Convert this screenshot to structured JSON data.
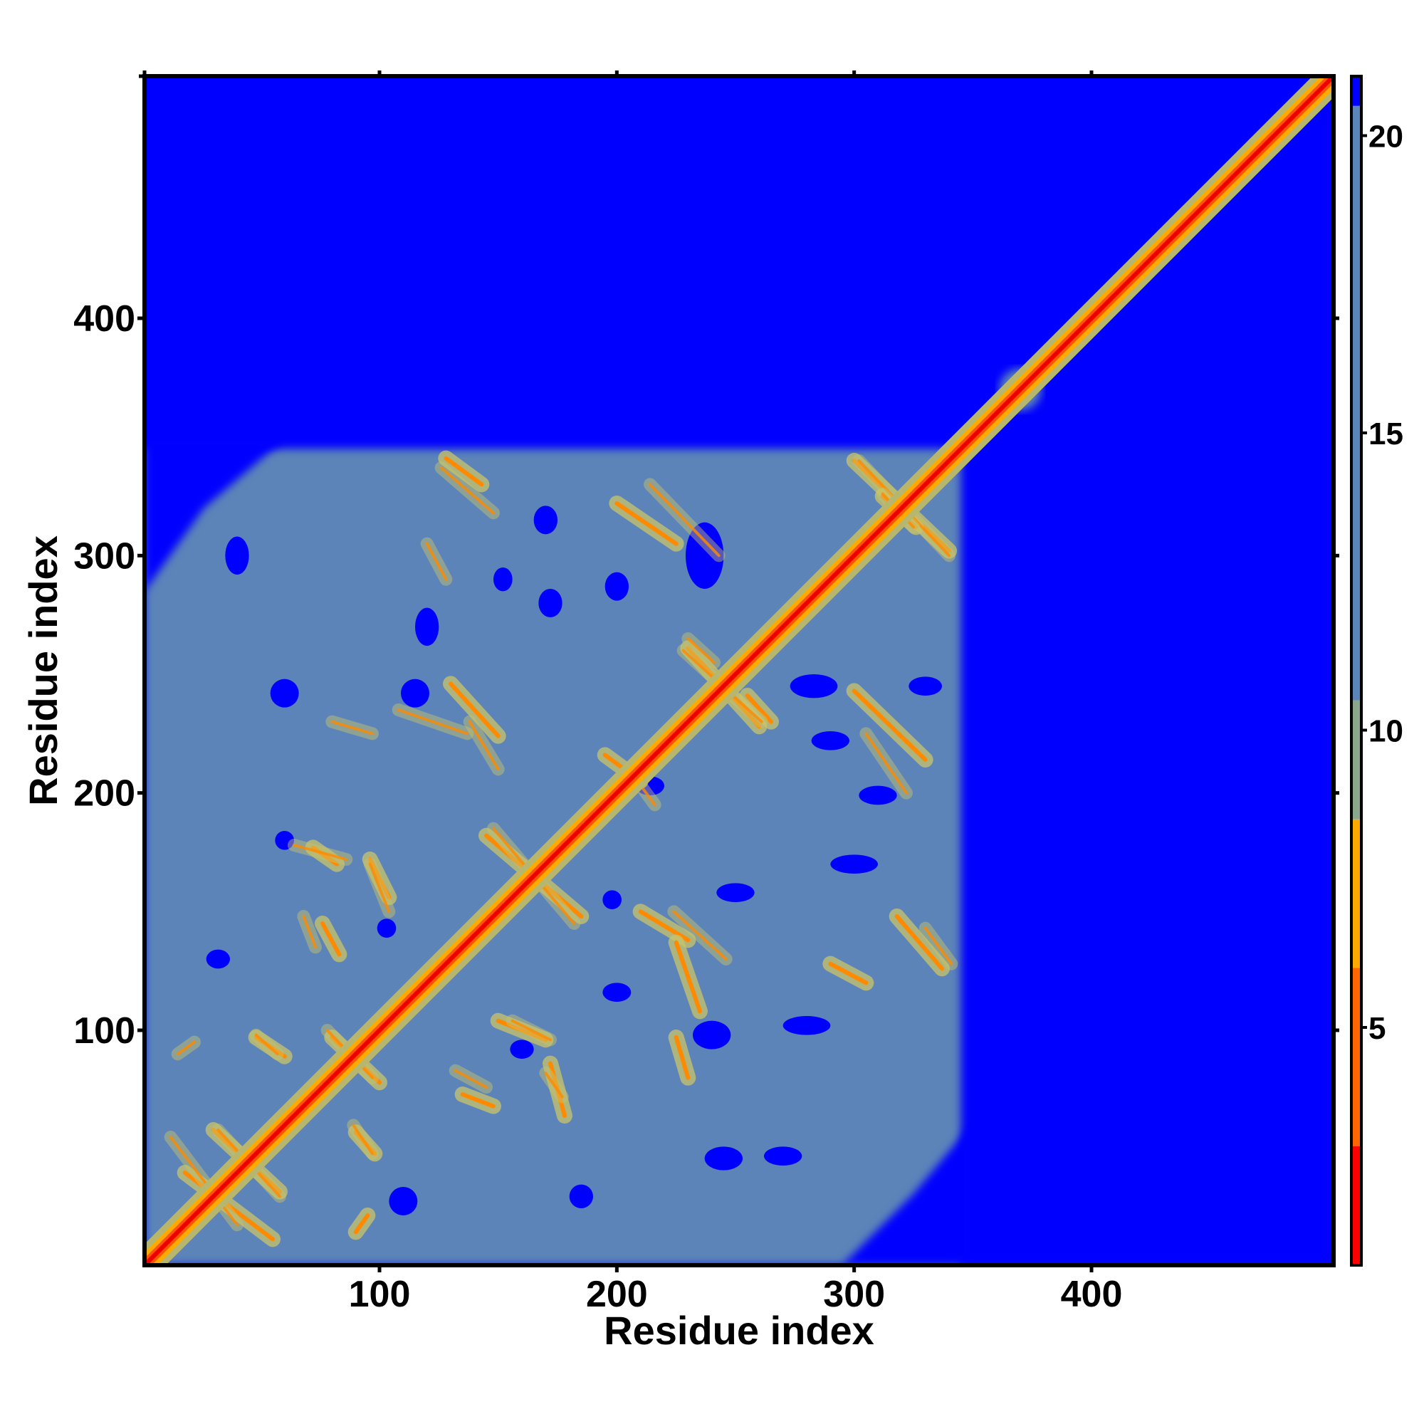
{
  "chart_data": {
    "type": "heatmap",
    "title": "",
    "xlabel": "Residue index",
    "ylabel": "Residue index",
    "xlim": [
      1,
      502
    ],
    "ylim": [
      1,
      502
    ],
    "x_ticks": [
      100,
      200,
      300,
      400
    ],
    "y_ticks": [
      100,
      200,
      300,
      400
    ],
    "colorbar": {
      "range": [
        1,
        21
      ],
      "ticks": [
        5,
        10,
        15,
        20
      ],
      "segments": [
        {
          "from": 1,
          "to": 3,
          "color": "#ff0000"
        },
        {
          "from": 3,
          "to": 6,
          "color": "#ff6600"
        },
        {
          "from": 6,
          "to": 8.5,
          "color": "#ffaa00"
        },
        {
          "from": 8.5,
          "to": 10.5,
          "color": "#8aa68c"
        },
        {
          "from": 10.5,
          "to": 20.5,
          "color": "#5b84b8"
        },
        {
          "from": 20.5,
          "to": 21,
          "color": "#0000ff"
        }
      ]
    },
    "background_color": "#0000ff",
    "contact_region": {
      "from": 1,
      "to": 345,
      "color": "#5b84b8"
    },
    "secondary_domain": {
      "from": 362,
      "to": 378
    },
    "diagonal": {
      "from": 1,
      "to": 502
    },
    "contact_arms": [
      {
        "x1": 18,
        "y1": 40,
        "x2": 55,
        "y2": 12
      },
      {
        "x1": 30,
        "y1": 58,
        "x2": 58,
        "y2": 32
      },
      {
        "x1": 48,
        "y1": 97,
        "x2": 60,
        "y2": 89
      },
      {
        "x1": 80,
        "y1": 97,
        "x2": 100,
        "y2": 78
      },
      {
        "x1": 90,
        "y1": 57,
        "x2": 98,
        "y2": 48
      },
      {
        "x1": 96,
        "y1": 172,
        "x2": 104,
        "y2": 156
      },
      {
        "x1": 72,
        "y1": 177,
        "x2": 82,
        "y2": 170
      },
      {
        "x1": 76,
        "y1": 145,
        "x2": 83,
        "y2": 132
      },
      {
        "x1": 145,
        "y1": 182,
        "x2": 185,
        "y2": 148
      },
      {
        "x1": 130,
        "y1": 246,
        "x2": 150,
        "y2": 224
      },
      {
        "x1": 150,
        "y1": 104,
        "x2": 170,
        "y2": 96
      },
      {
        "x1": 135,
        "y1": 73,
        "x2": 148,
        "y2": 68
      },
      {
        "x1": 172,
        "y1": 86,
        "x2": 178,
        "y2": 64
      },
      {
        "x1": 200,
        "y1": 322,
        "x2": 225,
        "y2": 305
      },
      {
        "x1": 128,
        "y1": 341,
        "x2": 143,
        "y2": 330
      },
      {
        "x1": 300,
        "y1": 340,
        "x2": 340,
        "y2": 302
      },
      {
        "x1": 312,
        "y1": 325,
        "x2": 326,
        "y2": 312
      },
      {
        "x1": 300,
        "y1": 243,
        "x2": 330,
        "y2": 214
      },
      {
        "x1": 230,
        "y1": 261,
        "x2": 260,
        "y2": 228
      },
      {
        "x1": 195,
        "y1": 216,
        "x2": 210,
        "y2": 205
      },
      {
        "x1": 318,
        "y1": 148,
        "x2": 337,
        "y2": 126
      },
      {
        "x1": 290,
        "y1": 128,
        "x2": 305,
        "y2": 120
      },
      {
        "x1": 210,
        "y1": 150,
        "x2": 230,
        "y2": 138
      },
      {
        "x1": 225,
        "y1": 137,
        "x2": 235,
        "y2": 108
      },
      {
        "x1": 225,
        "y1": 97,
        "x2": 230,
        "y2": 80
      },
      {
        "x1": 255,
        "y1": 241,
        "x2": 265,
        "y2": 230
      },
      {
        "x1": 90,
        "y1": 15,
        "x2": 95,
        "y2": 22
      }
    ],
    "holes": [
      {
        "x": 60,
        "y": 242,
        "rx": 6,
        "ry": 6
      },
      {
        "x": 115,
        "y": 242,
        "rx": 6,
        "ry": 6
      },
      {
        "x": 60,
        "y": 180,
        "rx": 4,
        "ry": 4
      },
      {
        "x": 32,
        "y": 130,
        "rx": 5,
        "ry": 4
      },
      {
        "x": 240,
        "y": 98,
        "rx": 8,
        "ry": 6
      },
      {
        "x": 283,
        "y": 245,
        "rx": 10,
        "ry": 5
      },
      {
        "x": 310,
        "y": 199,
        "rx": 8,
        "ry": 4
      },
      {
        "x": 245,
        "y": 46,
        "rx": 8,
        "ry": 5
      },
      {
        "x": 270,
        "y": 47,
        "rx": 8,
        "ry": 4
      },
      {
        "x": 214,
        "y": 203,
        "rx": 6,
        "ry": 4
      },
      {
        "x": 172,
        "y": 280,
        "rx": 5,
        "ry": 6
      },
      {
        "x": 237,
        "y": 300,
        "rx": 8,
        "ry": 14
      },
      {
        "x": 290,
        "y": 222,
        "rx": 8,
        "ry": 4
      },
      {
        "x": 170,
        "y": 315,
        "rx": 5,
        "ry": 6
      },
      {
        "x": 152,
        "y": 290,
        "rx": 4,
        "ry": 5
      },
      {
        "x": 40,
        "y": 300,
        "rx": 5,
        "ry": 8
      },
      {
        "x": 200,
        "y": 287,
        "rx": 5,
        "ry": 6
      },
      {
        "x": 300,
        "y": 170,
        "rx": 10,
        "ry": 4
      },
      {
        "x": 330,
        "y": 245,
        "rx": 7,
        "ry": 4
      },
      {
        "x": 110,
        "y": 28,
        "rx": 6,
        "ry": 6
      },
      {
        "x": 200,
        "y": 116,
        "rx": 6,
        "ry": 4
      },
      {
        "x": 280,
        "y": 102,
        "rx": 10,
        "ry": 4
      },
      {
        "x": 160,
        "y": 92,
        "rx": 5,
        "ry": 4
      },
      {
        "x": 120,
        "y": 270,
        "rx": 5,
        "ry": 8
      },
      {
        "x": 103,
        "y": 143,
        "rx": 4,
        "ry": 4
      },
      {
        "x": 185,
        "y": 30,
        "rx": 5,
        "ry": 5
      },
      {
        "x": 250,
        "y": 158,
        "rx": 8,
        "ry": 4
      },
      {
        "x": 198,
        "y": 155,
        "rx": 4,
        "ry": 4
      }
    ]
  }
}
